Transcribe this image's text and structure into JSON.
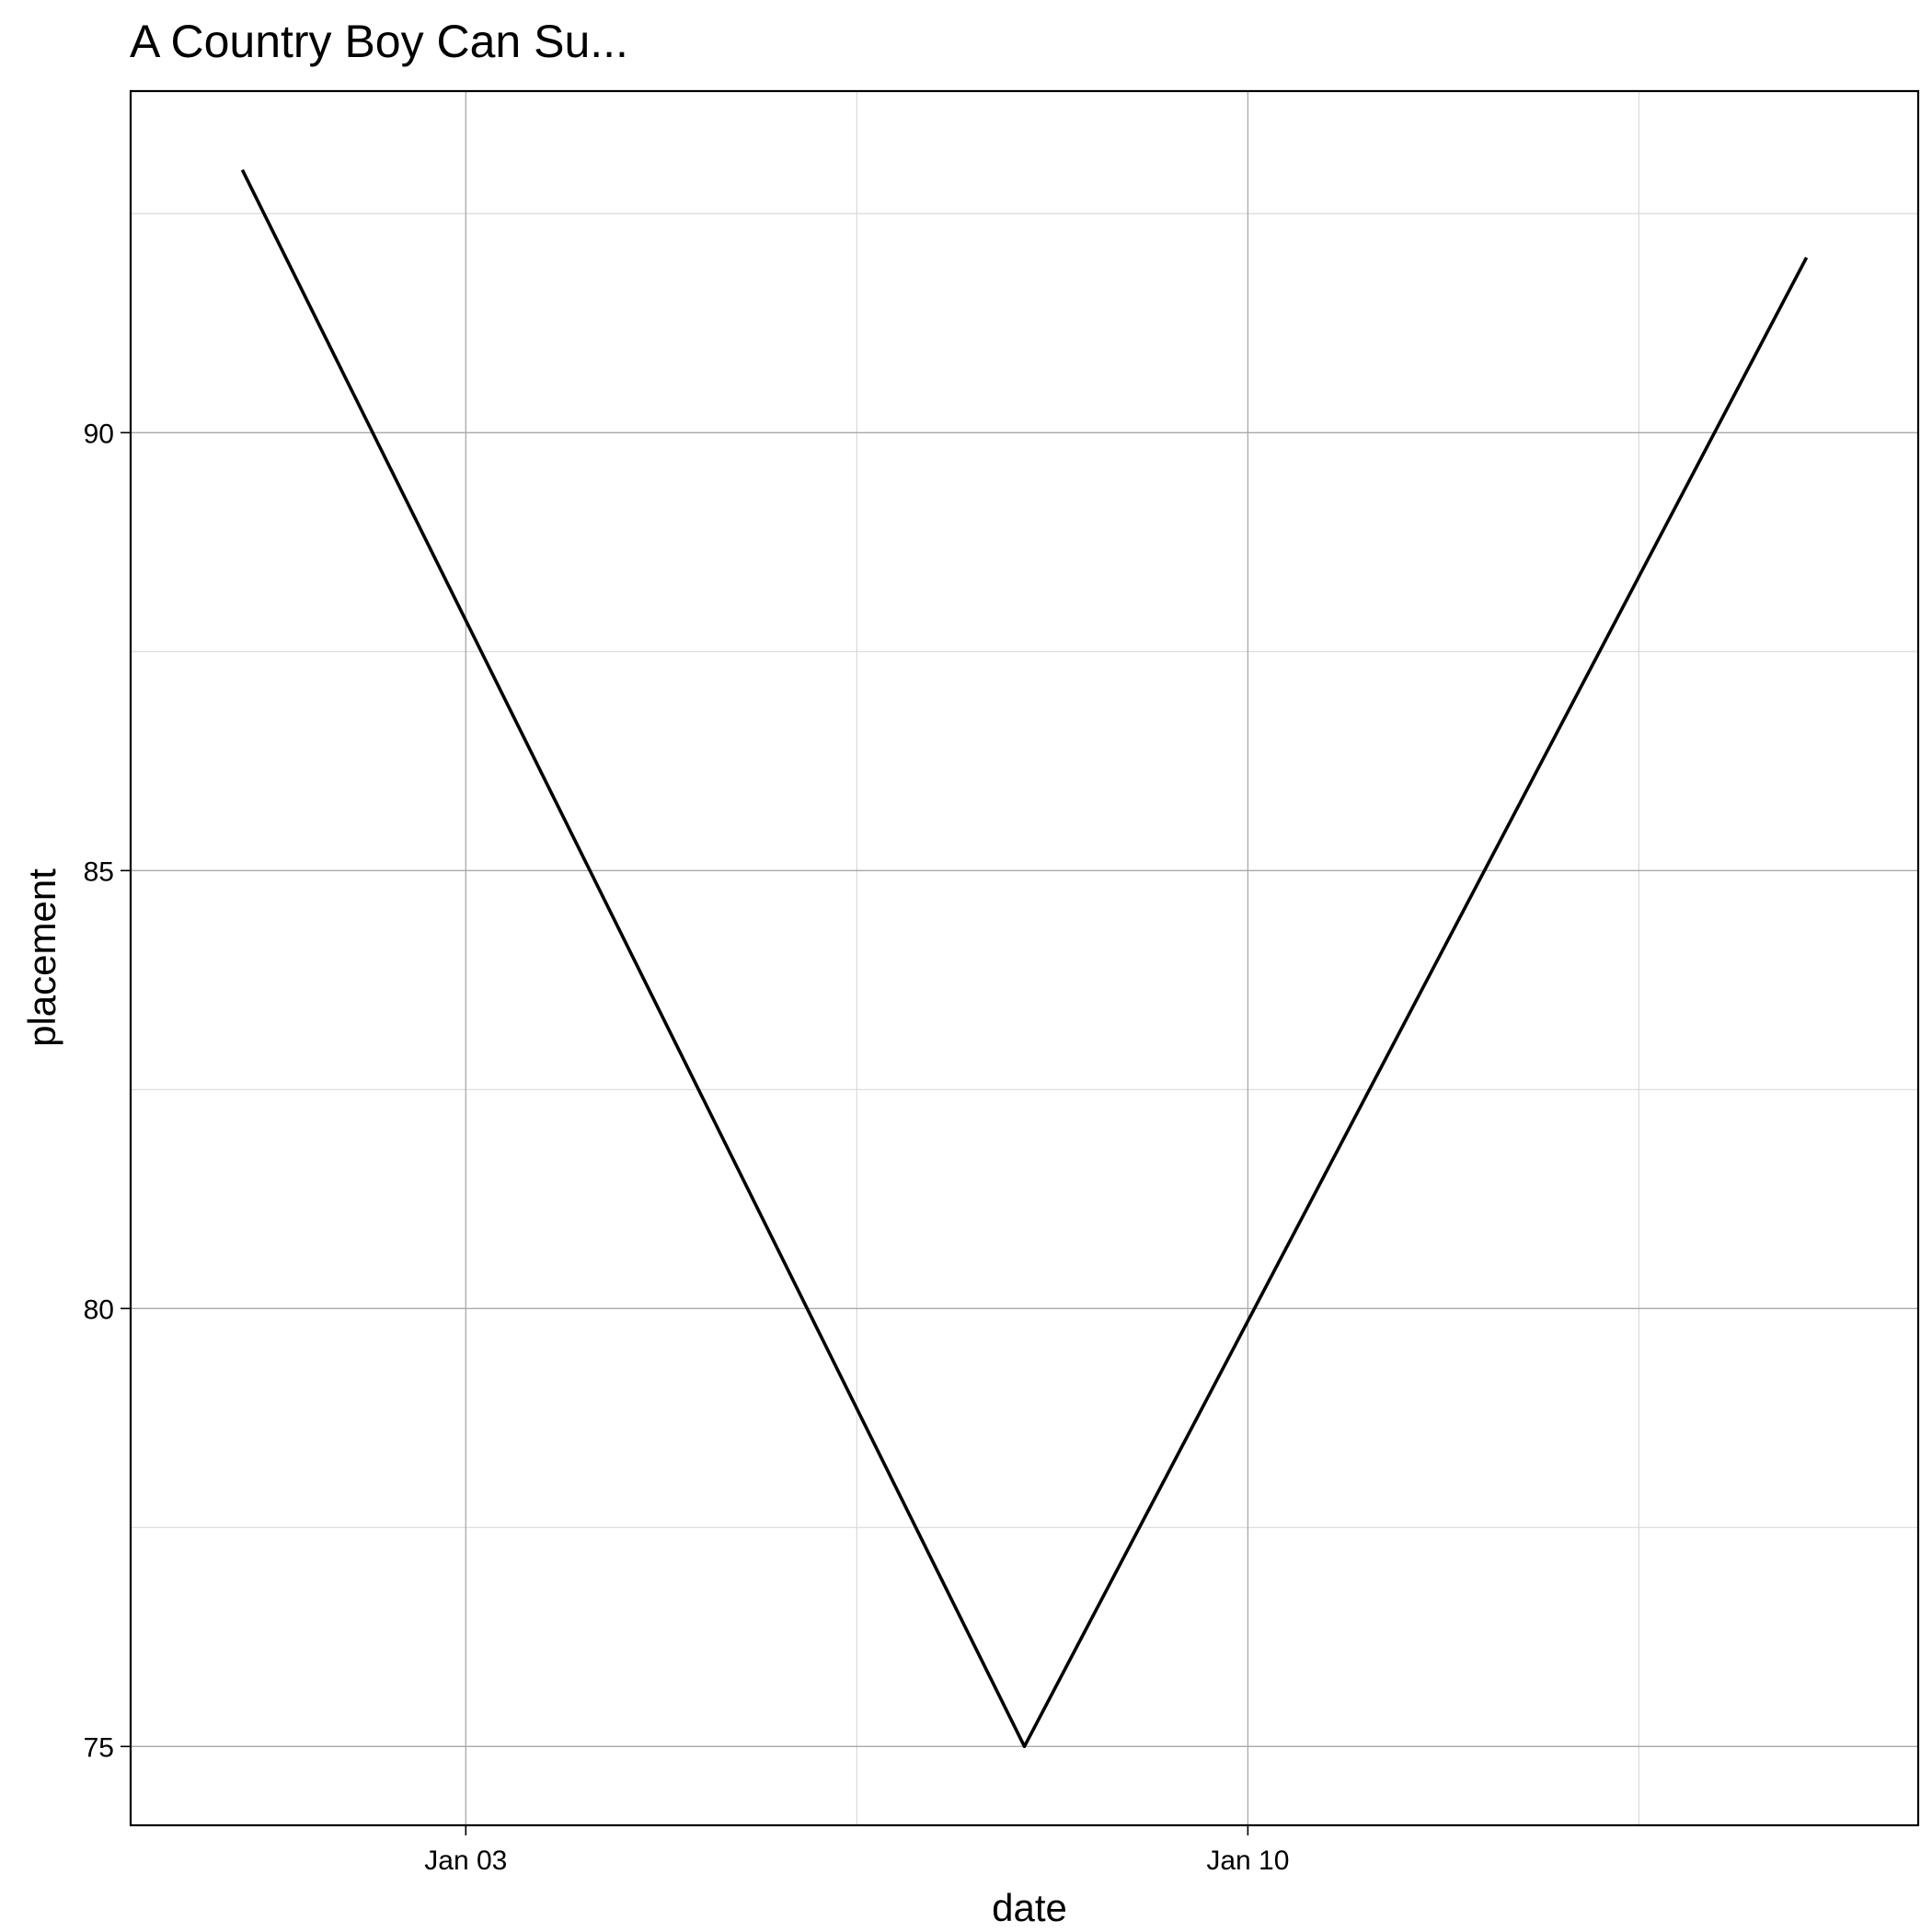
{
  "chart_data": {
    "type": "line",
    "title": "A Country Boy Can Su...",
    "xlabel": "date",
    "ylabel": "placement",
    "x": [
      "Jan 01",
      "Jan 08",
      "Jan 15"
    ],
    "series": [
      {
        "values": [
          93,
          75,
          92
        ],
        "color": "#000000"
      }
    ],
    "xlim": [
      "Dec 31",
      "Jan 16"
    ],
    "ylim": [
      74.1,
      93.9
    ],
    "x_ticks": [
      "Jan 03",
      "Jan 10"
    ],
    "y_ticks": [
      75,
      80,
      85,
      90
    ],
    "grid": true,
    "theme": "bw"
  }
}
